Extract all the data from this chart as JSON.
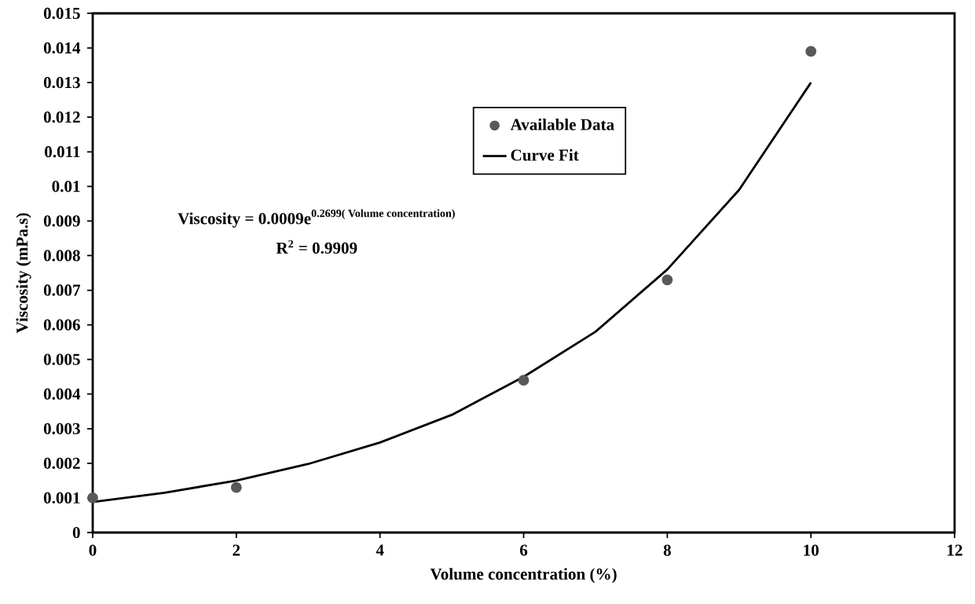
{
  "chart_data": {
    "type": "scatter",
    "xlabel": "Volume concentration (%)",
    "ylabel": "Viscosity (mPa.s)",
    "xlim": [
      0,
      12
    ],
    "xticks": [
      0,
      2,
      4,
      6,
      8,
      10,
      12
    ],
    "ylim": [
      0,
      0.015
    ],
    "yticks": [
      0,
      0.001,
      0.002,
      0.003,
      0.004,
      0.005,
      0.006,
      0.007,
      0.008,
      0.009,
      0.01,
      0.011,
      0.012,
      0.013,
      0.014,
      0.015
    ],
    "grid": false,
    "legend": "top",
    "marker": "circle",
    "annotations": [
      "\\text{Viscosity = 0.0009e}^{\\text{0.2699( Volume concentration)}}",
      "R$^{2}$ = 0.9909"
    ],
    "series": [
      {
        "name": "Available Data",
        "color": "#595959",
        "x": [
          0,
          2,
          6,
          8,
          10
        ],
        "values": [
          0.001,
          0.0013,
          0.0044,
          0.0073,
          0.0139
        ]
      },
      {
        "name": "Curve Fit",
        "type": "line",
        "color": "#000000",
        "marker": "none",
        "line_style": "solid",
        "x": [
          0,
          1,
          2,
          3,
          4,
          5,
          6,
          7,
          8,
          9,
          10
        ],
        "values": [
          0.00088,
          0.00115,
          0.0015,
          0.00198,
          0.0026,
          0.0034,
          0.0045,
          0.0058,
          0.0076,
          0.0099,
          0.013
        ]
      }
    ]
  }
}
